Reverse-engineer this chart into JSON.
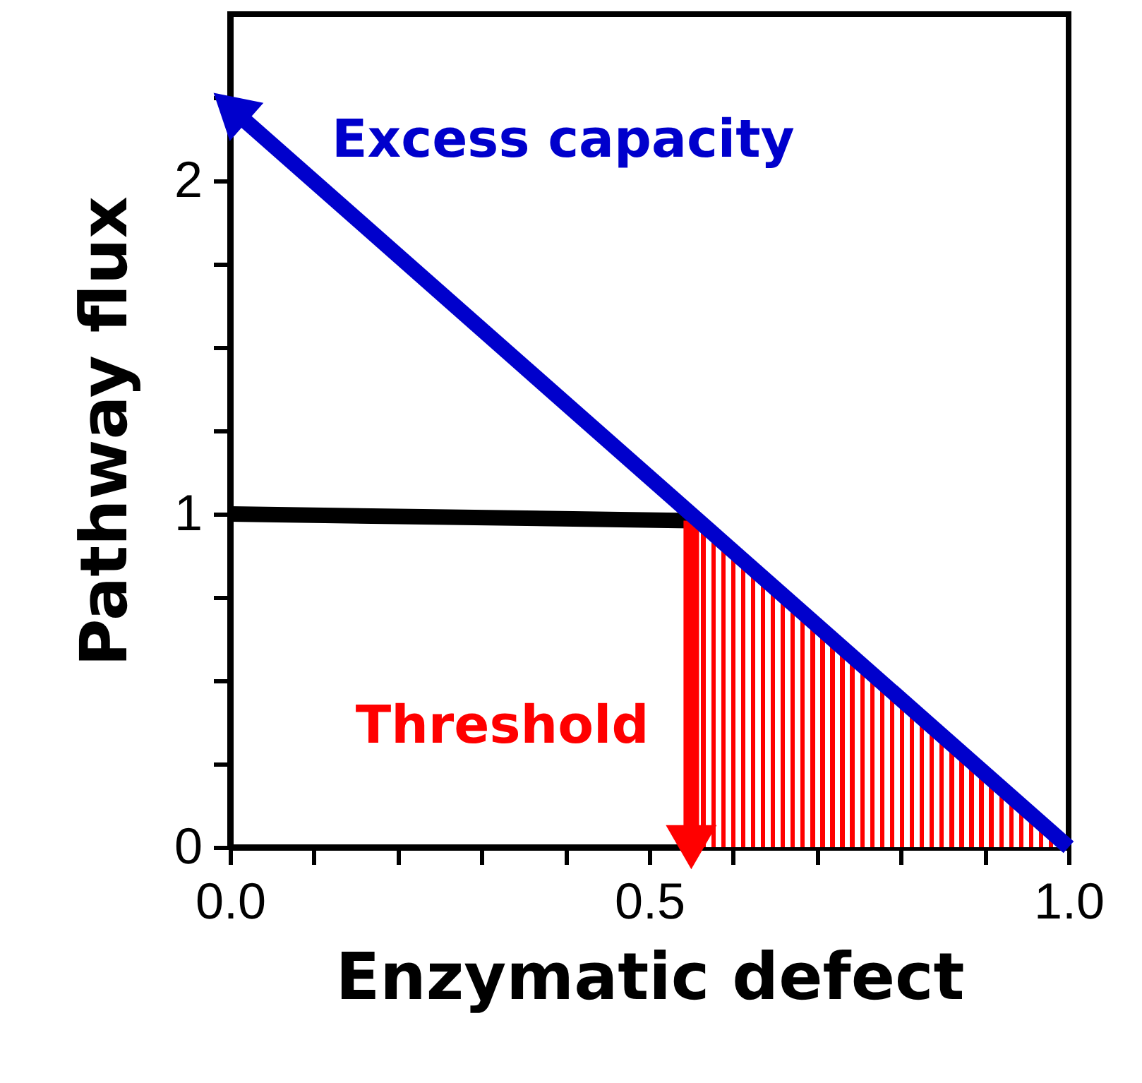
{
  "chart_data": {
    "type": "line",
    "xlabel": "Enzymatic defect",
    "ylabel": "Pathway flux",
    "xlim": [
      0,
      1
    ],
    "ylim": [
      0,
      2.5
    ],
    "xticks": [
      {
        "value": 0,
        "label": "0.0"
      },
      {
        "value": 0.1,
        "label": null
      },
      {
        "value": 0.2,
        "label": null
      },
      {
        "value": 0.3,
        "label": null
      },
      {
        "value": 0.4,
        "label": null
      },
      {
        "value": 0.5,
        "label": "0.5"
      },
      {
        "value": 0.6,
        "label": null
      },
      {
        "value": 0.7,
        "label": null
      },
      {
        "value": 0.8,
        "label": null
      },
      {
        "value": 0.9,
        "label": null
      },
      {
        "value": 1,
        "label": "1.0"
      }
    ],
    "yticks": [
      0,
      {
        "value": 0.25,
        "label": null
      },
      {
        "value": 0.5,
        "label": null
      },
      {
        "value": 0.75,
        "label": null
      },
      1,
      {
        "value": 1.25,
        "label": null
      },
      {
        "value": 1.5,
        "label": null
      },
      {
        "value": 1.75,
        "label": null
      },
      2,
      {
        "value": 2.25,
        "label": null
      }
    ],
    "grid": false,
    "series": [
      {
        "type": "area",
        "color": "#ff0000",
        "x": [
          0.55,
          1
        ],
        "values": [
          1.0,
          0
        ]
      },
      {
        "color": "#000000",
        "x": [
          0,
          0.55
        ],
        "values": [
          1.0,
          0.98
        ]
      },
      {
        "name": "Threshold",
        "color": "#ff0000",
        "x": [
          0.55,
          0.55
        ],
        "values": [
          0.98,
          0
        ]
      },
      {
        "name": "Excess capacity",
        "color": "#0000cc",
        "x": [
          1,
          0
        ],
        "values": [
          0,
          2.22
        ]
      }
    ]
  }
}
